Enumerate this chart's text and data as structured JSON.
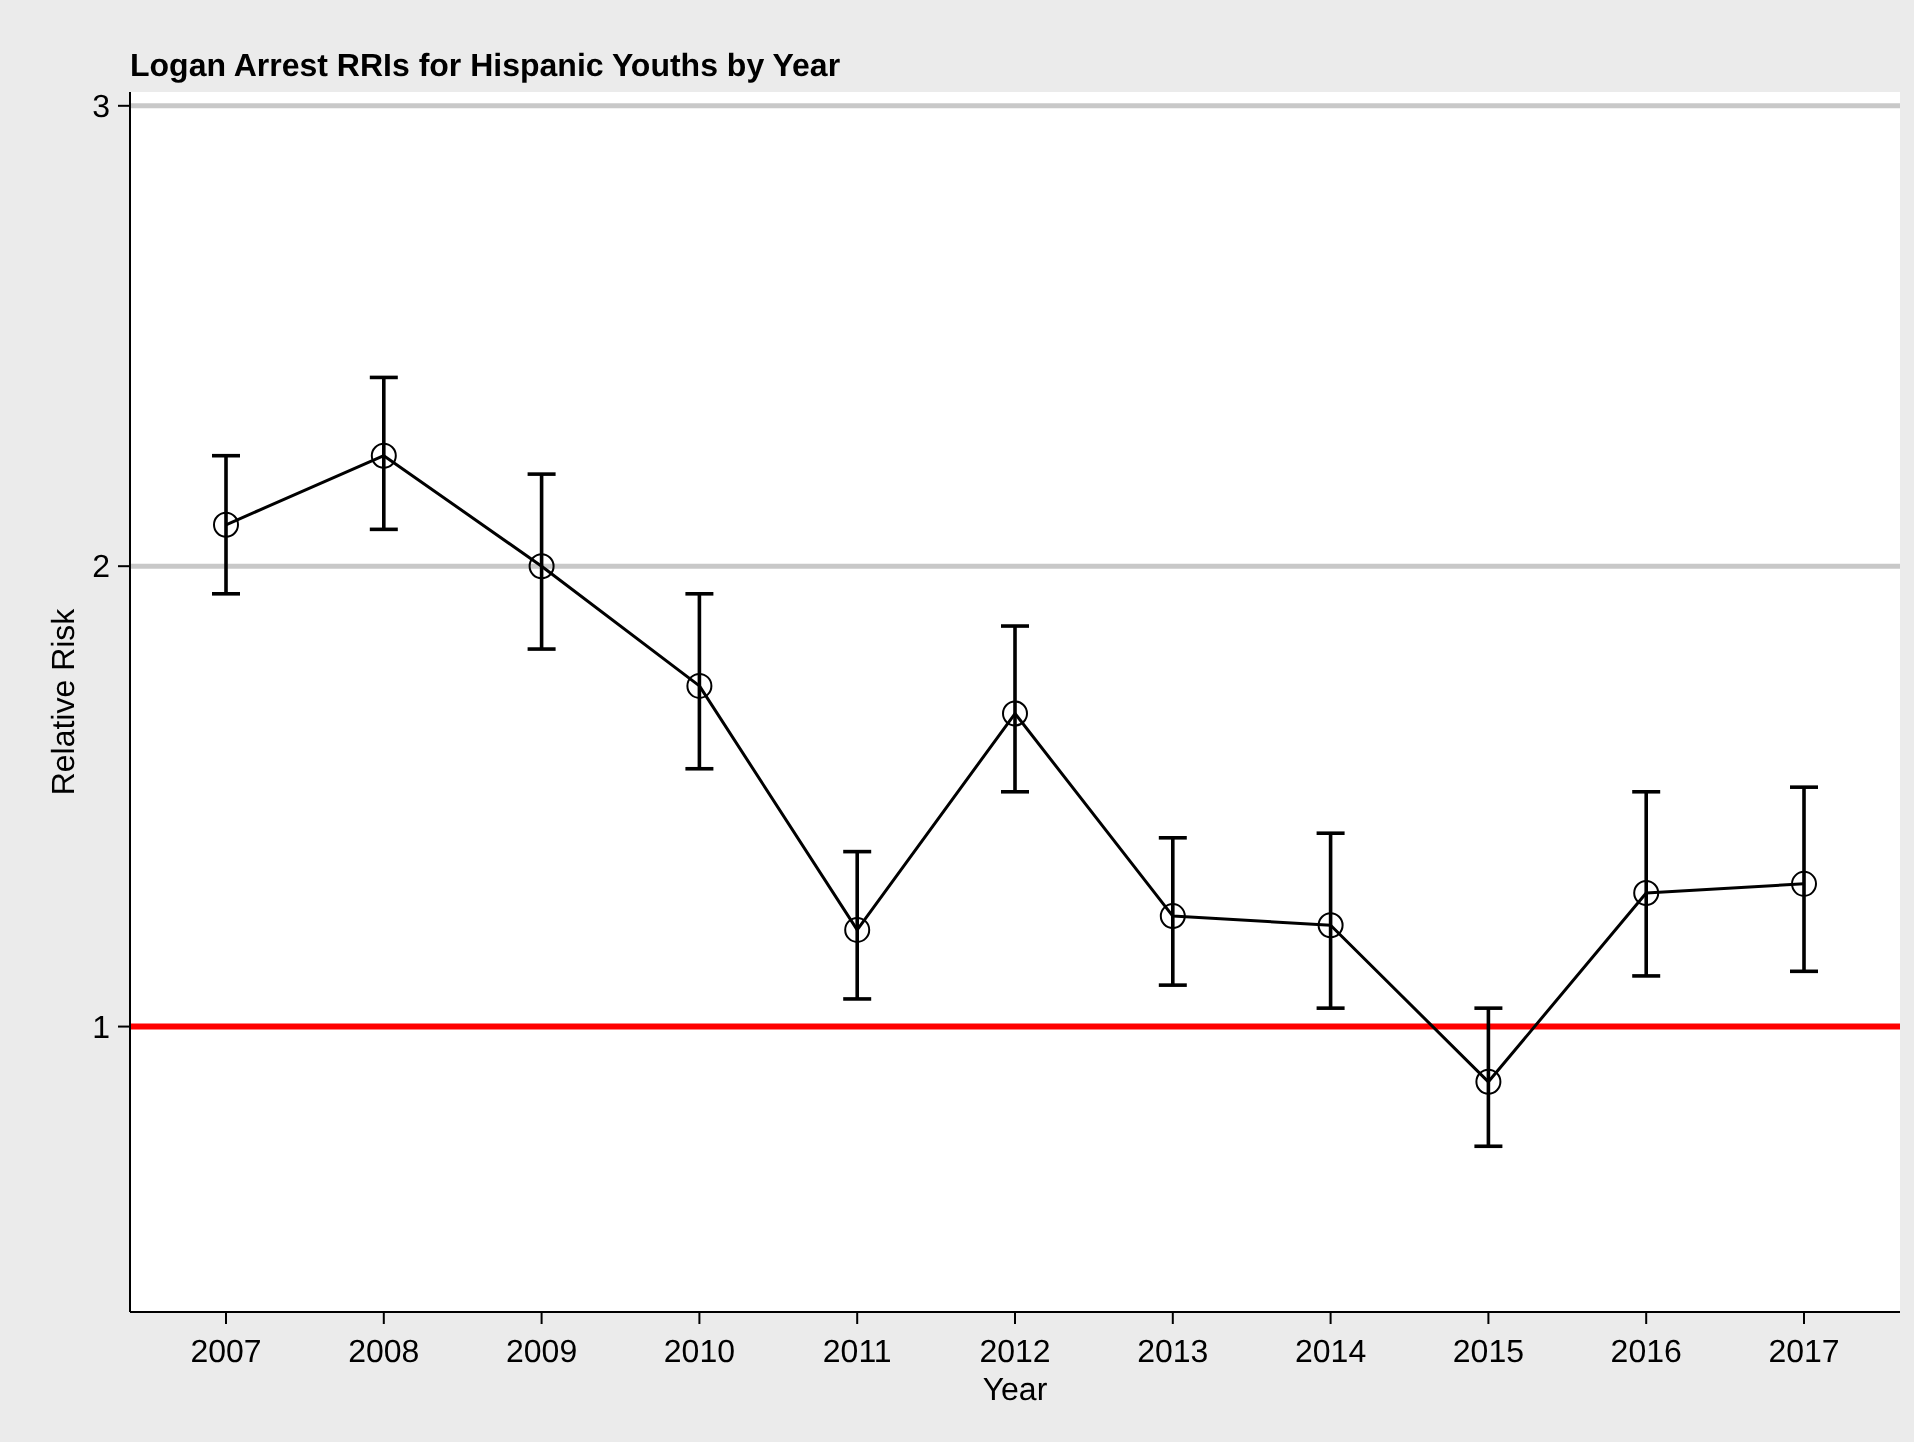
{
  "chart_data": {
    "type": "line",
    "title": "Logan Arrest RRIs for Hispanic Youths by Year",
    "xlabel": "Year",
    "ylabel": "Relative Risk",
    "categories": [
      "2007",
      "2008",
      "2009",
      "2010",
      "2011",
      "2012",
      "2013",
      "2014",
      "2015",
      "2016",
      "2017"
    ],
    "series": [
      {
        "color": "#000000",
        "values": [
          2.09,
          2.24,
          2.0,
          1.74,
          1.21,
          1.68,
          1.24,
          1.22,
          0.88,
          1.29,
          1.31
        ],
        "errors": [
          [
            1.94,
            2.24
          ],
          [
            2.08,
            2.41
          ],
          [
            1.82,
            2.2
          ],
          [
            1.56,
            1.94
          ],
          [
            1.06,
            1.38
          ],
          [
            1.51,
            1.87
          ],
          [
            1.09,
            1.41
          ],
          [
            1.04,
            1.42
          ],
          [
            0.74,
            1.04
          ],
          [
            1.11,
            1.51
          ],
          [
            1.12,
            1.52
          ]
        ]
      }
    ],
    "ylim": [
      0.38,
      3.03
    ],
    "yticks": [
      1,
      2,
      3
    ],
    "grid": "y",
    "marker": "circle",
    "line_style": "solid",
    "ref_lines": [
      {
        "axis": "y",
        "value": 1,
        "color": "#ff0000"
      }
    ]
  }
}
